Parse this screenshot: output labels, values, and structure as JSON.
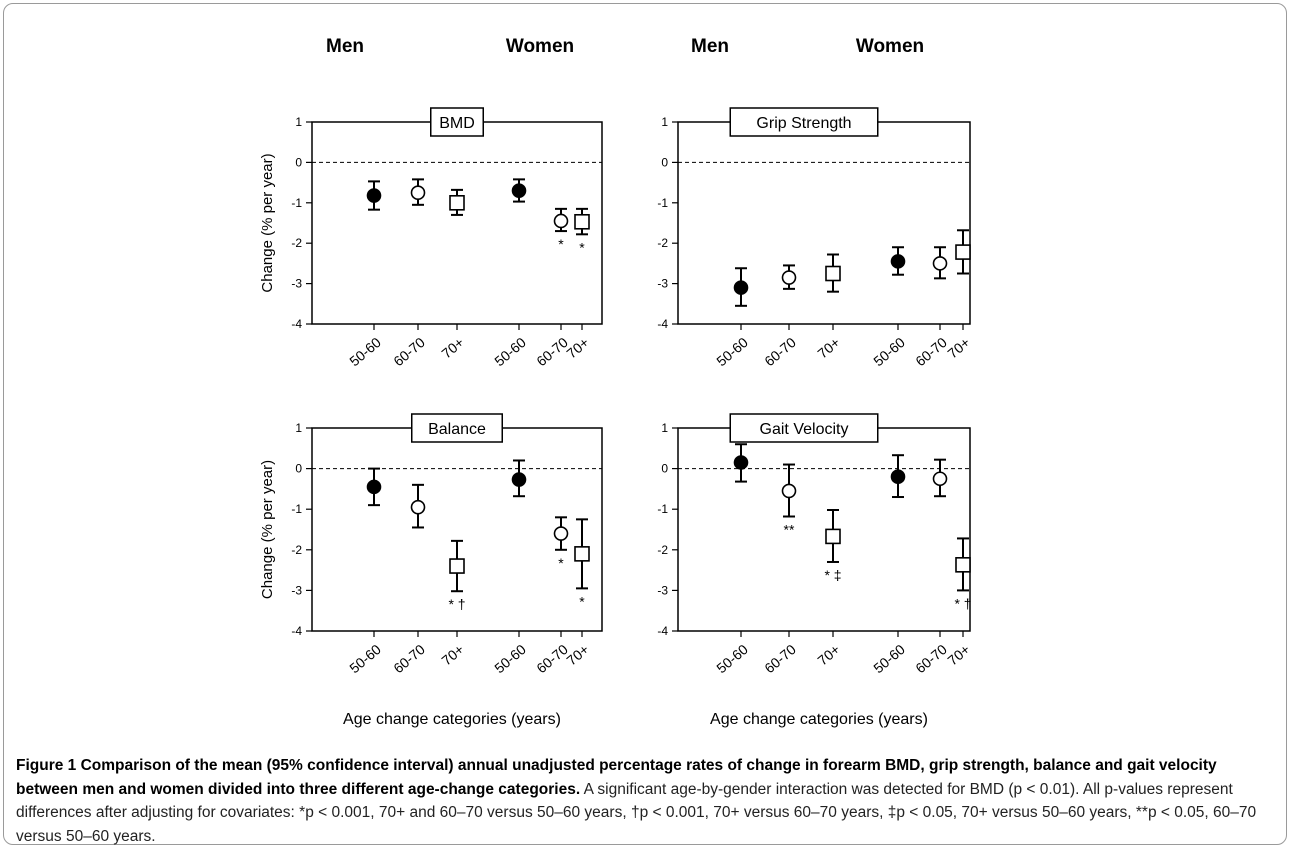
{
  "figure": {
    "caption_label": "Figure 1",
    "caption_title": "Comparison of the mean (95% confidence interval) annual unadjusted percentage rates of change in forearm BMD, grip strength, balance and gait velocity between men and women divided into three different age-change categories.",
    "caption_body": "A significant age-by-gender interaction was detected for BMD (p < 0.01). All p-values represent differences after adjusting for covariates: *p < 0.001, 70+ and 60–70 versus 50–60 years, †p < 0.001, 70+ versus 60–70 years, ‡p < 0.05, 70+ versus 50–60 years, **p < 0.05, 60–70 versus 50–60 years."
  },
  "chart_data": [
    {
      "type": "scatter",
      "title": "BMD",
      "group_labels": [
        "Men",
        "Women"
      ],
      "ylabel": "Change (% per year)",
      "xlabel": "",
      "ylim": [
        -4,
        1
      ],
      "yticks": [
        1,
        0,
        -1,
        -2,
        -3,
        -4
      ],
      "categories": [
        "50-60",
        "60-70",
        "70+",
        "50-60",
        "60-70",
        "70+"
      ],
      "points": [
        {
          "group": "Men",
          "category": "50-60",
          "marker": "filled-circle",
          "mean": -0.82,
          "ci": [
            -1.17,
            -0.47
          ],
          "annotation": ""
        },
        {
          "group": "Men",
          "category": "60-70",
          "marker": "open-circle",
          "mean": -0.75,
          "ci": [
            -1.05,
            -0.42
          ],
          "annotation": ""
        },
        {
          "group": "Men",
          "category": "70+",
          "marker": "open-square",
          "mean": -1.0,
          "ci": [
            -1.3,
            -0.68
          ],
          "annotation": ""
        },
        {
          "group": "Women",
          "category": "50-60",
          "marker": "filled-circle",
          "mean": -0.7,
          "ci": [
            -0.97,
            -0.42
          ],
          "annotation": ""
        },
        {
          "group": "Women",
          "category": "60-70",
          "marker": "open-circle",
          "mean": -1.45,
          "ci": [
            -1.7,
            -1.15
          ],
          "annotation": "*"
        },
        {
          "group": "Women",
          "category": "70+",
          "marker": "open-square",
          "mean": -1.47,
          "ci": [
            -1.78,
            -1.15
          ],
          "annotation": "*"
        }
      ]
    },
    {
      "type": "scatter",
      "title": "Grip Strength",
      "group_labels": [
        "Men",
        "Women"
      ],
      "ylabel": "",
      "xlabel": "",
      "ylim": [
        -4,
        1
      ],
      "yticks": [
        1,
        0,
        -1,
        -2,
        -3,
        -4
      ],
      "categories": [
        "50-60",
        "60-70",
        "70+",
        "50-60",
        "60-70",
        "70+"
      ],
      "points": [
        {
          "group": "Men",
          "category": "50-60",
          "marker": "filled-circle",
          "mean": -3.1,
          "ci": [
            -3.55,
            -2.62
          ],
          "annotation": ""
        },
        {
          "group": "Men",
          "category": "60-70",
          "marker": "open-circle",
          "mean": -2.85,
          "ci": [
            -3.13,
            -2.55
          ],
          "annotation": ""
        },
        {
          "group": "Men",
          "category": "70+",
          "marker": "open-square",
          "mean": -2.75,
          "ci": [
            -3.2,
            -2.28
          ],
          "annotation": ""
        },
        {
          "group": "Women",
          "category": "50-60",
          "marker": "filled-circle",
          "mean": -2.45,
          "ci": [
            -2.78,
            -2.1
          ],
          "annotation": ""
        },
        {
          "group": "Women",
          "category": "60-70",
          "marker": "open-circle",
          "mean": -2.5,
          "ci": [
            -2.87,
            -2.1
          ],
          "annotation": ""
        },
        {
          "group": "Women",
          "category": "70+",
          "marker": "open-square",
          "mean": -2.22,
          "ci": [
            -2.75,
            -1.68
          ],
          "annotation": ""
        }
      ]
    },
    {
      "type": "scatter",
      "title": "Balance",
      "group_labels": [],
      "ylabel": "Change (% per year)",
      "xlabel": "Age change categories (years)",
      "ylim": [
        -4,
        1
      ],
      "yticks": [
        1,
        0,
        -1,
        -2,
        -3,
        -4
      ],
      "categories": [
        "50-60",
        "60-70",
        "70+",
        "50-60",
        "60-70",
        "70+"
      ],
      "points": [
        {
          "group": "Men",
          "category": "50-60",
          "marker": "filled-circle",
          "mean": -0.45,
          "ci": [
            -0.9,
            0.0
          ],
          "annotation": ""
        },
        {
          "group": "Men",
          "category": "60-70",
          "marker": "open-circle",
          "mean": -0.95,
          "ci": [
            -1.45,
            -0.4
          ],
          "annotation": ""
        },
        {
          "group": "Men",
          "category": "70+",
          "marker": "open-square",
          "mean": -2.4,
          "ci": [
            -3.02,
            -1.78
          ],
          "annotation": "* †"
        },
        {
          "group": "Women",
          "category": "50-60",
          "marker": "filled-circle",
          "mean": -0.27,
          "ci": [
            -0.68,
            0.2
          ],
          "annotation": ""
        },
        {
          "group": "Women",
          "category": "60-70",
          "marker": "open-circle",
          "mean": -1.6,
          "ci": [
            -2.0,
            -1.2
          ],
          "annotation": "*"
        },
        {
          "group": "Women",
          "category": "70+",
          "marker": "open-square",
          "mean": -2.1,
          "ci": [
            -2.95,
            -1.25
          ],
          "annotation": "*"
        }
      ]
    },
    {
      "type": "scatter",
      "title": "Gait Velocity",
      "group_labels": [],
      "ylabel": "",
      "xlabel": "Age change categories (years)",
      "ylim": [
        -4,
        1
      ],
      "yticks": [
        1,
        0,
        -1,
        -2,
        -3,
        -4
      ],
      "categories": [
        "50-60",
        "60-70",
        "70+",
        "50-60",
        "60-70",
        "70+"
      ],
      "points": [
        {
          "group": "Men",
          "category": "50-60",
          "marker": "filled-circle",
          "mean": 0.15,
          "ci": [
            -0.32,
            0.6
          ],
          "annotation": ""
        },
        {
          "group": "Men",
          "category": "60-70",
          "marker": "open-circle",
          "mean": -0.55,
          "ci": [
            -1.18,
            0.1
          ],
          "annotation": "**"
        },
        {
          "group": "Men",
          "category": "70+",
          "marker": "open-square",
          "mean": -1.67,
          "ci": [
            -2.3,
            -1.02
          ],
          "annotation": "* ‡"
        },
        {
          "group": "Women",
          "category": "50-60",
          "marker": "filled-circle",
          "mean": -0.2,
          "ci": [
            -0.7,
            0.33
          ],
          "annotation": ""
        },
        {
          "group": "Women",
          "category": "60-70",
          "marker": "open-circle",
          "mean": -0.25,
          "ci": [
            -0.68,
            0.22
          ],
          "annotation": ""
        },
        {
          "group": "Women",
          "category": "70+",
          "marker": "open-square",
          "mean": -2.37,
          "ci": [
            -3.0,
            -1.72
          ],
          "annotation": "* †"
        }
      ]
    }
  ]
}
